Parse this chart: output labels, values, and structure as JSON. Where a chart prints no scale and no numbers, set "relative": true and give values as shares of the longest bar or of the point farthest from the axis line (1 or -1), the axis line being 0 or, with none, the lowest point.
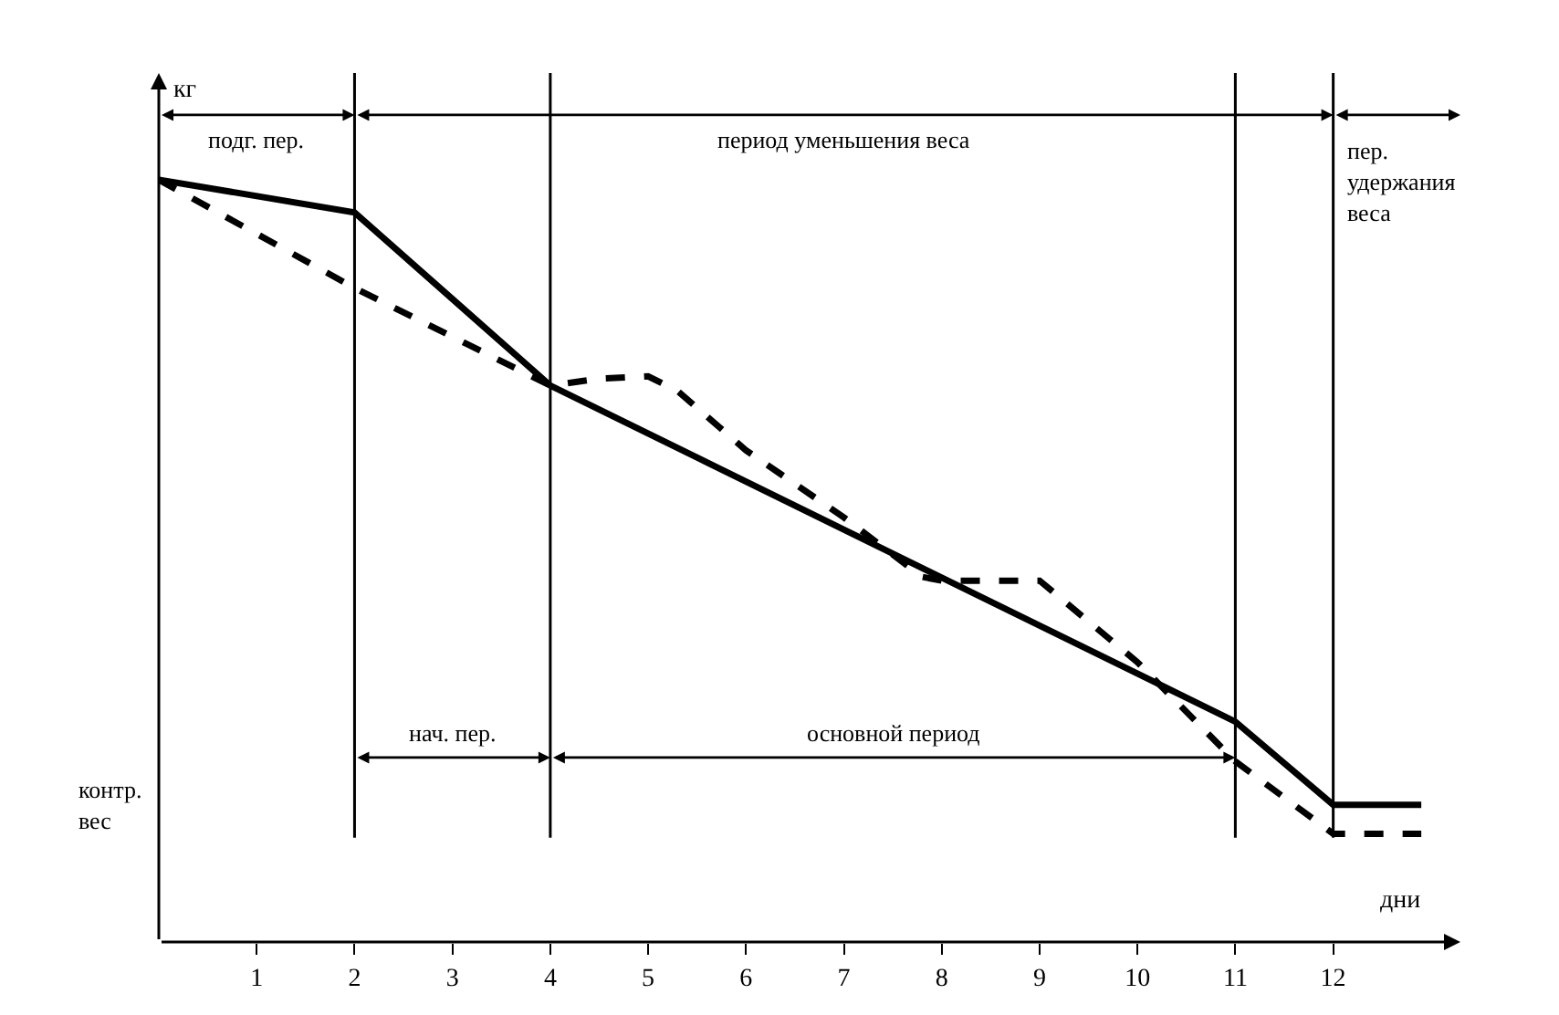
{
  "chart_data": {
    "type": "line",
    "relative": true,
    "xlabel": "дни",
    "ylabel": "кг",
    "xlim": [
      0,
      13.3
    ],
    "xticks": [
      1,
      2,
      3,
      4,
      5,
      6,
      7,
      8,
      9,
      10,
      11,
      12
    ],
    "marker": "none",
    "series": [
      {
        "color": "#000000",
        "line_style": "solid",
        "x": [
          0,
          2,
          4,
          11,
          12,
          12.9
        ],
        "values": [
          1.0,
          0.957,
          0.73,
          0.289,
          0.18,
          0.18
        ]
      },
      {
        "color": "#000000",
        "line_style": "dashed",
        "x": [
          0,
          2,
          4,
          4.5,
          5,
          5.3,
          6,
          7,
          7.8,
          8,
          9,
          10,
          11,
          12,
          12.9
        ],
        "values": [
          1.0,
          0.858,
          0.73,
          0.739,
          0.742,
          0.723,
          0.645,
          0.557,
          0.479,
          0.474,
          0.474,
          0.367,
          0.237,
          0.142,
          0.142
        ]
      }
    ],
    "ref_lines": [
      {
        "axis": "x",
        "value": 2
      },
      {
        "axis": "x",
        "value": 4
      },
      {
        "axis": "x",
        "value": 11
      },
      {
        "axis": "x",
        "value": 12
      }
    ],
    "annotations": [
      "подг. пер.",
      "период уменьшения веса",
      "пер.\nудержания\nвеса",
      "нач. пер.",
      "основной период",
      "контр.\nвес"
    ]
  }
}
